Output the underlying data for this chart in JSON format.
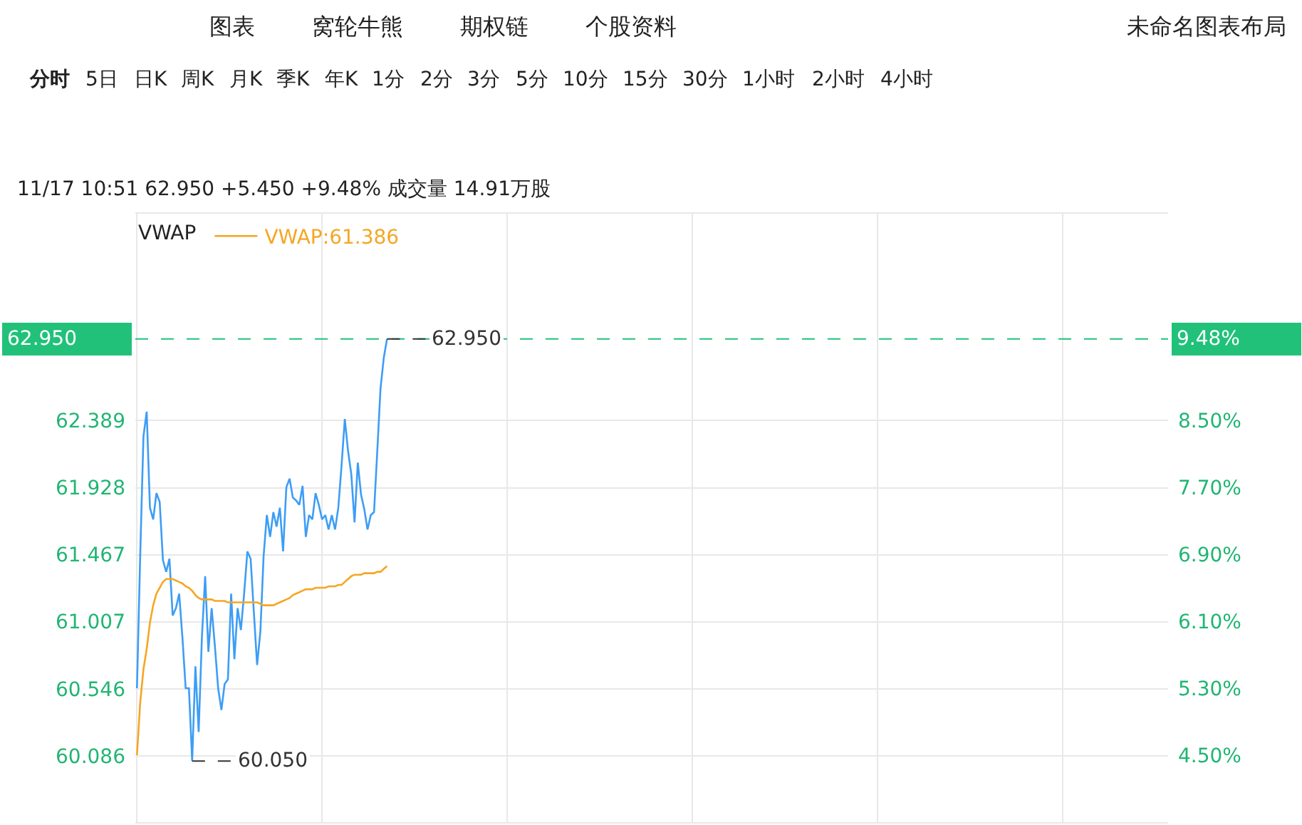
{
  "chart_data": {
    "type": "line",
    "title": "11/17 10:51 62.950 +5.450 +9.48% 成交量 14.91万股",
    "legend_title": "VWAP",
    "categories": [
      null,
      null,
      null,
      null,
      null,
      null,
      null,
      null,
      null,
      null,
      null,
      null,
      null,
      null,
      null,
      null,
      null,
      null,
      null,
      null,
      null,
      null,
      null,
      null,
      null,
      null,
      null,
      null,
      null,
      null,
      null,
      null,
      null,
      null,
      null,
      null,
      null,
      null,
      null,
      null,
      null,
      null,
      null,
      null,
      null,
      null,
      null,
      null,
      null,
      null,
      null,
      null,
      null,
      null,
      null,
      null,
      null,
      null,
      null,
      null,
      null,
      null,
      null,
      null,
      null,
      null,
      null,
      null,
      null,
      null,
      null,
      null,
      null,
      null,
      null,
      null,
      null,
      null,
      null,
      null,
      null,
      null,
      null,
      null,
      null,
      null,
      null,
      null,
      null,
      null,
      null,
      null,
      null,
      null,
      null,
      null,
      null,
      null,
      null,
      null,
      null,
      null,
      null,
      null,
      null,
      null,
      null,
      null,
      null,
      null,
      null,
      null,
      null,
      null,
      null,
      null,
      null,
      null,
      null,
      null,
      null,
      null,
      null,
      null,
      null,
      null,
      null,
      null,
      null,
      null,
      null,
      null,
      null,
      null,
      null,
      null,
      null,
      null,
      null,
      null,
      null,
      null,
      null,
      null,
      null,
      null,
      null,
      null,
      null,
      null,
      null,
      null,
      null,
      null,
      null,
      null,
      null,
      null,
      null,
      null,
      null,
      null,
      null,
      null,
      null,
      null,
      null,
      null,
      null,
      null,
      null,
      null,
      null,
      null,
      null,
      null,
      null,
      null,
      null,
      null,
      null,
      null,
      null,
      null,
      null,
      null,
      null,
      null,
      null,
      null,
      null,
      null,
      null,
      null,
      null,
      null,
      null,
      null,
      null,
      null,
      null,
      null,
      null,
      null,
      null,
      null,
      null,
      null,
      null,
      null,
      null,
      null,
      null,
      null,
      null,
      null,
      null,
      null,
      null,
      null,
      null,
      null,
      null,
      null,
      null,
      null,
      null,
      null,
      null,
      null,
      null,
      null,
      null,
      null,
      null,
      null,
      null,
      null,
      null,
      null,
      null,
      null,
      null,
      null,
      null,
      null,
      null,
      null,
      null,
      null,
      null,
      null,
      null,
      null,
      null,
      null,
      null,
      null,
      null,
      null,
      null,
      null,
      null,
      null,
      null,
      null,
      null,
      null,
      null,
      null,
      null,
      null,
      null,
      null,
      null,
      null,
      null,
      null,
      null,
      null,
      null,
      null,
      null,
      null,
      null,
      null,
      null,
      null,
      null,
      null,
      null,
      null,
      null,
      null,
      null,
      null,
      null,
      null,
      null,
      null,
      null,
      null,
      null,
      null,
      null,
      null,
      null,
      null,
      null,
      null,
      null,
      null,
      null,
      null,
      null,
      null,
      null,
      null
    ],
    "series": [
      {
        "color": "#3d9df5",
        "values": [
          60.55,
          61.46,
          62.28,
          62.45,
          61.79,
          61.71,
          61.89,
          61.83,
          61.43,
          61.35,
          61.44,
          61.05,
          61.1,
          61.2,
          60.9,
          60.55,
          60.55,
          60.05,
          60.7,
          60.25,
          60.9,
          61.32,
          60.8,
          61.1,
          60.84,
          60.55,
          60.4,
          60.58,
          60.61,
          61.2,
          60.75,
          61.1,
          60.95,
          61.2,
          61.49,
          61.44,
          61.07,
          60.71,
          60.94,
          61.46,
          61.74,
          61.59,
          61.76,
          61.66,
          61.79,
          61.49,
          61.93,
          61.99,
          61.86,
          61.84,
          61.81,
          61.94,
          61.59,
          61.74,
          61.71,
          61.89,
          61.81,
          61.71,
          61.74,
          61.64,
          61.74,
          61.64,
          61.79,
          62.08,
          62.4,
          62.18,
          62.02,
          61.69,
          62.1,
          61.88,
          61.78,
          61.64,
          61.74,
          61.76,
          62.18,
          62.61,
          62.82,
          62.95,
          null,
          null,
          null,
          null,
          null,
          null,
          null,
          null,
          null,
          null,
          null,
          null,
          null,
          null,
          null,
          null,
          null,
          null,
          null,
          null,
          null,
          null,
          null,
          null,
          null,
          null,
          null,
          null,
          null,
          null,
          null,
          null,
          null,
          null,
          null,
          null,
          null,
          null,
          null,
          null,
          null,
          null,
          null,
          null,
          null,
          null,
          null,
          null,
          null,
          null,
          null,
          null,
          null,
          null,
          null,
          null,
          null,
          null,
          null,
          null,
          null,
          null,
          null,
          null,
          null,
          null,
          null,
          null,
          null,
          null,
          null,
          null,
          null,
          null,
          null,
          null,
          null,
          null,
          null,
          null,
          null,
          null,
          null,
          null,
          null,
          null,
          null,
          null,
          null,
          null,
          null,
          null,
          null,
          null,
          null,
          null,
          null,
          null,
          null,
          null,
          null,
          null,
          null,
          null,
          null,
          null,
          null,
          null,
          null,
          null,
          null,
          null,
          null,
          null,
          null,
          null,
          null,
          null,
          null,
          null,
          null,
          null,
          null,
          null,
          null,
          null,
          null,
          null,
          null,
          null,
          null,
          null,
          null,
          null,
          null,
          null,
          null,
          null,
          null,
          null,
          null,
          null,
          null,
          null,
          null,
          null,
          null,
          null,
          null,
          null,
          null,
          null,
          null,
          null,
          null,
          null,
          null,
          null,
          null,
          null,
          null,
          null,
          null,
          null,
          null,
          null,
          null,
          null,
          null,
          null,
          null,
          null,
          null,
          null,
          null,
          null,
          null,
          null,
          null,
          null,
          null,
          null,
          null,
          null,
          null,
          null,
          null,
          null,
          null,
          null,
          null,
          null,
          null,
          null,
          null,
          null,
          null,
          null,
          null,
          null,
          null,
          null,
          null,
          null,
          null,
          null,
          null,
          null,
          null,
          null,
          null,
          null,
          null,
          null,
          null,
          null,
          null,
          null,
          null,
          null,
          null,
          null,
          null,
          null,
          null,
          null,
          null,
          null,
          null,
          null,
          null,
          null,
          null,
          null,
          null,
          null,
          null,
          null,
          null,
          null
        ]
      },
      {
        "name": "VWAP:61.386",
        "color": "#f5a623",
        "values": [
          60.09,
          60.45,
          60.68,
          60.82,
          61.0,
          61.12,
          61.2,
          61.24,
          61.28,
          61.3,
          61.3,
          61.3,
          61.29,
          61.28,
          61.27,
          61.25,
          61.24,
          61.22,
          61.19,
          61.17,
          61.16,
          61.16,
          61.16,
          61.16,
          61.15,
          61.15,
          61.15,
          61.15,
          61.14,
          61.14,
          61.14,
          61.14,
          61.14,
          61.14,
          61.14,
          61.14,
          61.14,
          61.14,
          61.13,
          61.12,
          61.12,
          61.12,
          61.12,
          61.13,
          61.14,
          61.15,
          61.16,
          61.17,
          61.19,
          61.2,
          61.21,
          61.22,
          61.23,
          61.23,
          61.23,
          61.24,
          61.24,
          61.24,
          61.24,
          61.25,
          61.25,
          61.25,
          61.26,
          61.26,
          61.28,
          61.3,
          61.32,
          61.33,
          61.33,
          61.33,
          61.34,
          61.34,
          61.34,
          61.34,
          61.35,
          61.35,
          61.37,
          61.39,
          null,
          null,
          null,
          null,
          null,
          null,
          null,
          null,
          null,
          null,
          null,
          null,
          null,
          null,
          null,
          null,
          null,
          null,
          null,
          null,
          null,
          null,
          null,
          null,
          null,
          null,
          null,
          null,
          null,
          null,
          null,
          null,
          null,
          null,
          null,
          null,
          null,
          null,
          null,
          null,
          null,
          null,
          null,
          null,
          null,
          null,
          null,
          null,
          null,
          null,
          null,
          null,
          null,
          null,
          null,
          null,
          null,
          null,
          null,
          null,
          null,
          null,
          null,
          null,
          null,
          null,
          null,
          null,
          null,
          null,
          null,
          null,
          null,
          null,
          null,
          null,
          null,
          null,
          null,
          null,
          null,
          null,
          null,
          null,
          null,
          null,
          null,
          null,
          null,
          null,
          null,
          null,
          null,
          null,
          null,
          null,
          null,
          null,
          null,
          null,
          null,
          null,
          null,
          null,
          null,
          null,
          null,
          null,
          null,
          null,
          null,
          null,
          null,
          null,
          null,
          null,
          null,
          null,
          null,
          null,
          null,
          null,
          null,
          null,
          null,
          null,
          null,
          null,
          null,
          null,
          null,
          null,
          null,
          null,
          null,
          null,
          null,
          null,
          null,
          null,
          null,
          null,
          null,
          null,
          null,
          null,
          null,
          null,
          null,
          null,
          null,
          null,
          null,
          null,
          null,
          null,
          null,
          null,
          null,
          null,
          null,
          null,
          null,
          null,
          null,
          null,
          null,
          null,
          null,
          null,
          null,
          null,
          null,
          null,
          null,
          null,
          null,
          null,
          null,
          null,
          null,
          null,
          null,
          null,
          null,
          null,
          null,
          null,
          null,
          null,
          null,
          null,
          null,
          null,
          null,
          null,
          null,
          null,
          null,
          null,
          null,
          null,
          null,
          null,
          null,
          null,
          null,
          null,
          null,
          null,
          null,
          null,
          null,
          null,
          null,
          null,
          null,
          null,
          null,
          null,
          null,
          null,
          null,
          null,
          null,
          null,
          null,
          null,
          null,
          null,
          null,
          null,
          null,
          null,
          null,
          null,
          null,
          null,
          null,
          null
        ]
      }
    ],
    "ylim": [
      59.63,
      63.81
    ],
    "yticks": [
      60.086,
      60.546,
      61.007,
      61.467,
      61.928,
      62.389
    ],
    "y2lim": [
      3.7,
      10.97
    ],
    "y2ticks": [
      {
        "value": 4.5,
        "label": "4.50%"
      },
      {
        "value": 5.3,
        "label": "5.30%"
      },
      {
        "value": 6.1,
        "label": "6.10%"
      },
      {
        "value": 6.9,
        "label": "6.90%"
      },
      {
        "value": 7.7,
        "label": "7.70%"
      },
      {
        "value": 8.5,
        "label": "8.50%"
      }
    ],
    "ref_lines": [
      {
        "axis": "y",
        "value": 62.95,
        "label": "62.950",
        "color": "#21c17a",
        "line_style": "dashed"
      }
    ],
    "annotations": [
      "图表",
      "窝轮牛熊",
      "期权链",
      "个股资料",
      "未命名图表布局",
      "分时",
      "5日",
      "日K",
      "周K",
      "月K",
      "季K",
      "年K",
      "1分",
      "2分",
      "3分",
      "5分",
      "10分",
      "15分",
      "30分",
      "1小时",
      "2小时",
      "4小时",
      "60.050",
      "62.950",
      "9.48%"
    ],
    "grid": true,
    "legend": "top left",
    "marker": "none",
    "line_style": "solid"
  }
}
